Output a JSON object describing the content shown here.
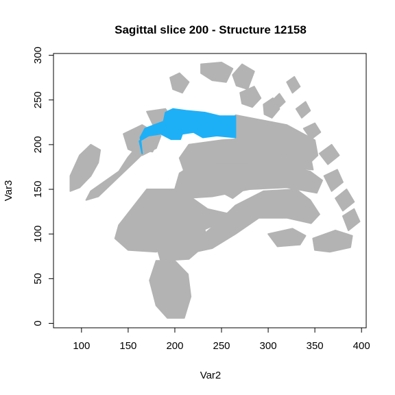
{
  "chart_data": {
    "type": "scatter",
    "title": "Sagittal slice 200 - Structure 12158",
    "xlabel": "Var2",
    "ylabel": "Var3",
    "xlim": [
      70,
      405
    ],
    "ylim": [
      -5,
      302
    ],
    "x_ticks": [
      100,
      150,
      200,
      250,
      300,
      350,
      400
    ],
    "y_ticks": [
      0,
      50,
      100,
      150,
      200,
      250,
      300
    ],
    "grid": false,
    "legend": "none",
    "series": [
      {
        "role": "brain-tissue",
        "color": "#b3b3b3",
        "regions": [
          [
            [
              140,
              110
            ],
            [
              170,
              150
            ],
            [
              205,
              150
            ],
            [
              235,
              128
            ],
            [
              260,
              122
            ],
            [
              262,
              112
            ],
            [
              238,
              108
            ],
            [
              210,
              95
            ],
            [
              180,
              80
            ],
            [
              150,
              82
            ],
            [
              136,
              95
            ]
          ],
          [
            [
              185,
              70
            ],
            [
              215,
              72
            ],
            [
              235,
              90
            ],
            [
              232,
              105
            ],
            [
              215,
              110
            ],
            [
              193,
              102
            ],
            [
              180,
              88
            ]
          ],
          [
            [
              180,
              70
            ],
            [
              200,
              70
            ],
            [
              214,
              55
            ],
            [
              217,
              30
            ],
            [
              210,
              6
            ],
            [
              192,
              6
            ],
            [
              180,
              20
            ],
            [
              173,
              48
            ]
          ],
          [
            [
              220,
              90
            ],
            [
              245,
              112
            ],
            [
              265,
              132
            ],
            [
              295,
              148
            ],
            [
              330,
              150
            ],
            [
              345,
              138
            ],
            [
              355,
              122
            ],
            [
              346,
              112
            ],
            [
              320,
              118
            ],
            [
              290,
              118
            ],
            [
              265,
              100
            ],
            [
              240,
              84
            ],
            [
              222,
              80
            ]
          ],
          [
            [
              200,
              150
            ],
            [
              205,
              168
            ],
            [
              220,
              178
            ],
            [
              260,
              180
            ],
            [
              310,
              178
            ],
            [
              345,
              170
            ],
            [
              358,
              160
            ],
            [
              352,
              146
            ],
            [
              320,
              152
            ],
            [
              280,
              150
            ],
            [
              240,
              142
            ],
            [
              210,
              140
            ]
          ],
          [
            [
              210,
              170
            ],
            [
              205,
              185
            ],
            [
              215,
              200
            ],
            [
              250,
              205
            ],
            [
              290,
              208
            ],
            [
              330,
              200
            ],
            [
              345,
              188
            ],
            [
              348,
              172
            ],
            [
              320,
              174
            ],
            [
              280,
              178
            ],
            [
              245,
              178
            ],
            [
              220,
              175
            ]
          ],
          [
            [
              265,
              205
            ],
            [
              265,
              233
            ],
            [
              320,
              222
            ],
            [
              350,
              205
            ],
            [
              353,
              188
            ],
            [
              345,
              180
            ]
          ],
          [
            [
              88,
              165
            ],
            [
              98,
              188
            ],
            [
              110,
              200
            ],
            [
              120,
              194
            ],
            [
              118,
              180
            ],
            [
              110,
              165
            ],
            [
              98,
              152
            ],
            [
              88,
              148
            ]
          ],
          [
            [
              110,
              148
            ],
            [
              140,
              170
            ],
            [
              150,
              186
            ],
            [
              158,
              196
            ],
            [
              170,
              204
            ],
            [
              170,
              194
            ],
            [
              156,
              180
            ],
            [
              138,
              162
            ],
            [
              118,
              142
            ],
            [
              105,
              138
            ]
          ],
          [
            [
              145,
              212
            ],
            [
              165,
              222
            ],
            [
              185,
              210
            ],
            [
              180,
              196
            ],
            [
              165,
              188
            ],
            [
              150,
              195
            ]
          ],
          [
            [
              160,
              195
            ],
            [
              172,
              208
            ],
            [
              182,
              204
            ],
            [
              176,
              192
            ]
          ],
          [
            [
              170,
              237
            ],
            [
              190,
              240
            ],
            [
              200,
              225
            ],
            [
              195,
              212
            ],
            [
              180,
              215
            ]
          ],
          [
            [
              195,
              275
            ],
            [
              205,
              280
            ],
            [
              215,
              270
            ],
            [
              208,
              258
            ],
            [
              198,
              262
            ]
          ],
          [
            [
              228,
              290
            ],
            [
              250,
              292
            ],
            [
              262,
              285
            ],
            [
              255,
              270
            ],
            [
              240,
              272
            ],
            [
              228,
              280
            ]
          ],
          [
            [
              262,
              278
            ],
            [
              272,
              290
            ],
            [
              285,
              282
            ],
            [
              278,
              262
            ],
            [
              266,
              266
            ]
          ],
          [
            [
              270,
              258
            ],
            [
              285,
              265
            ],
            [
              292,
              252
            ],
            [
              283,
              242
            ],
            [
              272,
              246
            ]
          ],
          [
            [
              295,
              245
            ],
            [
              305,
              252
            ],
            [
              312,
              240
            ],
            [
              304,
              230
            ],
            [
              296,
              234
            ]
          ],
          [
            [
              305,
              250
            ],
            [
              312,
              257
            ],
            [
              318,
              248
            ],
            [
              312,
              242
            ]
          ],
          [
            [
              320,
              270
            ],
            [
              328,
              276
            ],
            [
              334,
              265
            ],
            [
              326,
              258
            ]
          ],
          [
            [
              330,
              240
            ],
            [
              340,
              248
            ],
            [
              345,
              238
            ],
            [
              336,
              230
            ]
          ],
          [
            [
              338,
              218
            ],
            [
              350,
              224
            ],
            [
              356,
              214
            ],
            [
              346,
              206
            ]
          ],
          [
            [
              355,
              190
            ],
            [
              368,
              200
            ],
            [
              376,
              188
            ],
            [
              364,
              178
            ]
          ],
          [
            [
              360,
              165
            ],
            [
              374,
              172
            ],
            [
              380,
              158
            ],
            [
              368,
              148
            ]
          ],
          [
            [
              372,
              140
            ],
            [
              384,
              150
            ],
            [
              392,
              136
            ],
            [
              380,
              126
            ]
          ],
          [
            [
              380,
              120
            ],
            [
              392,
              128
            ],
            [
              398,
              114
            ],
            [
              386,
              104
            ]
          ],
          [
            [
              348,
              95
            ],
            [
              372,
              104
            ],
            [
              390,
              98
            ],
            [
              388,
              85
            ],
            [
              366,
              80
            ],
            [
              350,
              82
            ]
          ],
          [
            [
              300,
              100
            ],
            [
              326,
              106
            ],
            [
              340,
              98
            ],
            [
              334,
              88
            ],
            [
              310,
              86
            ]
          ],
          [
            [
              248,
              148
            ],
            [
              260,
              156
            ],
            [
              272,
              148
            ],
            [
              262,
              140
            ]
          ]
        ]
      },
      {
        "role": "structure-12158",
        "color": "#1eb0f7",
        "regions": [
          [
            [
              165,
              190
            ],
            [
              162,
              204
            ],
            [
              172,
              210
            ],
            [
              185,
              212
            ],
            [
              196,
              206
            ],
            [
              206,
              206
            ],
            [
              208,
              212
            ],
            [
              220,
              214
            ],
            [
              230,
              208
            ],
            [
              245,
              210
            ],
            [
              265,
              208
            ],
            [
              265,
              232
            ],
            [
              248,
              232
            ],
            [
              232,
              236
            ],
            [
              212,
              238
            ],
            [
              198,
              240
            ],
            [
              190,
              236
            ],
            [
              188,
              226
            ],
            [
              178,
              222
            ],
            [
              168,
              218
            ],
            [
              163,
              208
            ]
          ]
        ]
      }
    ]
  }
}
